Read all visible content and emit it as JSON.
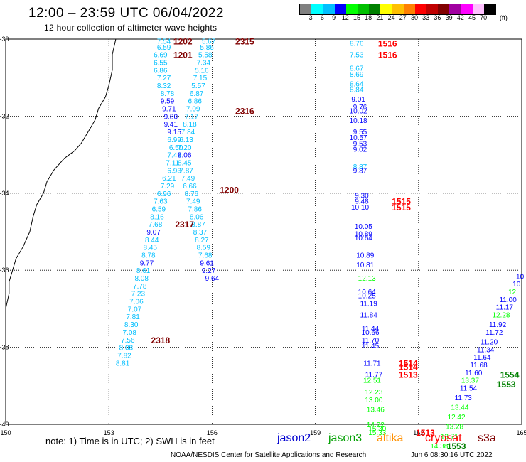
{
  "title": "12:00 – 23:59 UTC 06/04/2022",
  "subtitle": "12 hour collection of altimeter wave heights",
  "colorbar": {
    "unit": "(ft)",
    "labels": [
      "3",
      "6",
      "9",
      "12",
      "15",
      "18",
      "21",
      "24",
      "27",
      "30",
      "33",
      "36",
      "39",
      "42",
      "45",
      "70"
    ],
    "colors": [
      "#808080",
      "#00ffff",
      "#00bfff",
      "#0000ff",
      "#00ff00",
      "#00c000",
      "#008000",
      "#ffff00",
      "#ffc000",
      "#ff8000",
      "#ff0000",
      "#c00000",
      "#800000",
      "#a000a0",
      "#ff00ff",
      "#ffc0ff",
      "#000000"
    ]
  },
  "axes": {
    "lon_labels": [
      "150",
      "153",
      "156",
      "159",
      "162",
      "165"
    ],
    "lat_labels": [
      "-30",
      "-32",
      "-34",
      "-36",
      "-38",
      "-40"
    ]
  },
  "note": "note:  1) Time is in UTC;  2) SWH is in feet",
  "legend": [
    {
      "name": "jason2",
      "color": "#0000d0"
    },
    {
      "name": "jason3",
      "color": "#00a000"
    },
    {
      "name": "altika",
      "color": "#ff9000"
    },
    {
      "name": "cryosat",
      "color": "#ff0000"
    },
    {
      "name": "s3a",
      "color": "#800000"
    }
  ],
  "credit": "NOAA/NESDIS Center for Satellite Applications and Research",
  "timestamp": "Jun  6 08:30:16 UTC 2022",
  "map_data": {
    "lon_range": [
      150,
      165
    ],
    "lat_range": [
      -40,
      -30
    ],
    "coastline": [
      [
        153.2,
        -30.0
      ],
      [
        153.1,
        -30.4
      ],
      [
        153.1,
        -30.8
      ],
      [
        153.0,
        -31.2
      ],
      [
        152.9,
        -31.5
      ],
      [
        152.7,
        -31.8
      ],
      [
        152.6,
        -32.1
      ],
      [
        152.4,
        -32.4
      ],
      [
        152.2,
        -32.7
      ],
      [
        152.0,
        -32.9
      ],
      [
        151.7,
        -33.1
      ],
      [
        151.4,
        -33.4
      ],
      [
        151.2,
        -33.7
      ],
      [
        151.1,
        -34.0
      ],
      [
        150.9,
        -34.3
      ],
      [
        150.8,
        -34.6
      ],
      [
        150.7,
        -35.0
      ],
      [
        150.5,
        -35.4
      ],
      [
        150.3,
        -35.7
      ],
      [
        150.2,
        -36.0
      ],
      [
        150.1,
        -36.3
      ],
      [
        150.1,
        -36.6
      ],
      [
        150.0,
        -37.0
      ],
      [
        150.0,
        -37.3
      ]
    ],
    "labels": [
      {
        "t": "7.54",
        "lon": 154.6,
        "lat": -30.05,
        "c": "#00bfff"
      },
      {
        "t": "6.59",
        "lon": 154.6,
        "lat": -30.2,
        "c": "#00bfff"
      },
      {
        "t": "6.69",
        "lon": 154.5,
        "lat": -30.4,
        "c": "#00bfff"
      },
      {
        "t": "6.55",
        "lon": 154.5,
        "lat": -30.6,
        "c": "#00bfff"
      },
      {
        "t": "6.86",
        "lon": 154.5,
        "lat": -30.8,
        "c": "#00bfff"
      },
      {
        "t": "7.27",
        "lon": 154.6,
        "lat": -31.0,
        "c": "#00bfff"
      },
      {
        "t": "8.32",
        "lon": 154.6,
        "lat": -31.2,
        "c": "#00bfff"
      },
      {
        "t": "8.78",
        "lon": 154.7,
        "lat": -31.4,
        "c": "#00bfff"
      },
      {
        "t": "9.59",
        "lon": 154.7,
        "lat": -31.6,
        "c": "#0000ff"
      },
      {
        "t": "9.71",
        "lon": 154.75,
        "lat": -31.8,
        "c": "#0000ff"
      },
      {
        "t": "9.80",
        "lon": 154.8,
        "lat": -32.0,
        "c": "#0000ff"
      },
      {
        "t": "9.41",
        "lon": 154.8,
        "lat": -32.2,
        "c": "#0000ff"
      },
      {
        "t": "9.15",
        "lon": 154.9,
        "lat": -32.4,
        "c": "#0000ff"
      },
      {
        "t": "6.99",
        "lon": 154.9,
        "lat": -32.6,
        "c": "#00bfff"
      },
      {
        "t": "6.50",
        "lon": 154.95,
        "lat": -32.8,
        "c": "#00bfff"
      },
      {
        "t": "7.49",
        "lon": 154.9,
        "lat": -33.0,
        "c": "#00bfff"
      },
      {
        "t": "7.11",
        "lon": 154.85,
        "lat": -33.2,
        "c": "#00bfff"
      },
      {
        "t": "6.93",
        "lon": 154.9,
        "lat": -33.4,
        "c": "#00bfff"
      },
      {
        "t": "6.21",
        "lon": 154.75,
        "lat": -33.6,
        "c": "#00bfff"
      },
      {
        "t": "7.29",
        "lon": 154.7,
        "lat": -33.8,
        "c": "#00bfff"
      },
      {
        "t": "6.96",
        "lon": 154.6,
        "lat": -34.0,
        "c": "#00bfff"
      },
      {
        "t": "7.63",
        "lon": 154.5,
        "lat": -34.2,
        "c": "#00bfff"
      },
      {
        "t": "6.59",
        "lon": 154.45,
        "lat": -34.4,
        "c": "#00bfff"
      },
      {
        "t": "8.16",
        "lon": 154.4,
        "lat": -34.6,
        "c": "#00bfff"
      },
      {
        "t": "7.68",
        "lon": 154.35,
        "lat": -34.8,
        "c": "#00bfff"
      },
      {
        "t": "9.07",
        "lon": 154.3,
        "lat": -35.0,
        "c": "#0000ff"
      },
      {
        "t": "8.44",
        "lon": 154.25,
        "lat": -35.2,
        "c": "#00bfff"
      },
      {
        "t": "8.45",
        "lon": 154.2,
        "lat": -35.4,
        "c": "#00bfff"
      },
      {
        "t": "8.78",
        "lon": 154.15,
        "lat": -35.6,
        "c": "#00bfff"
      },
      {
        "t": "9.77",
        "lon": 154.1,
        "lat": -35.8,
        "c": "#0000ff"
      },
      {
        "t": "8.61",
        "lon": 154.0,
        "lat": -36.0,
        "c": "#00bfff"
      },
      {
        "t": "8.08",
        "lon": 153.95,
        "lat": -36.2,
        "c": "#00bfff"
      },
      {
        "t": "7.78",
        "lon": 153.9,
        "lat": -36.4,
        "c": "#00bfff"
      },
      {
        "t": "7.23",
        "lon": 153.85,
        "lat": -36.6,
        "c": "#00bfff"
      },
      {
        "t": "7.06",
        "lon": 153.8,
        "lat": -36.8,
        "c": "#00bfff"
      },
      {
        "t": "7.07",
        "lon": 153.75,
        "lat": -37.0,
        "c": "#00bfff"
      },
      {
        "t": "7.81",
        "lon": 153.7,
        "lat": -37.2,
        "c": "#00bfff"
      },
      {
        "t": "8.30",
        "lon": 153.65,
        "lat": -37.4,
        "c": "#00bfff"
      },
      {
        "t": "7.08",
        "lon": 153.6,
        "lat": -37.6,
        "c": "#00bfff"
      },
      {
        "t": "7.56",
        "lon": 153.55,
        "lat": -37.8,
        "c": "#00bfff"
      },
      {
        "t": "8.08",
        "lon": 153.5,
        "lat": -38.0,
        "c": "#00bfff"
      },
      {
        "t": "7.82",
        "lon": 153.45,
        "lat": -38.2,
        "c": "#00bfff"
      },
      {
        "t": "8.81",
        "lon": 153.4,
        "lat": -38.4,
        "c": "#00bfff"
      },
      {
        "t": "5.67",
        "lon": 155.9,
        "lat": -30.05,
        "c": "#00bfff"
      },
      {
        "t": "5.86",
        "lon": 155.85,
        "lat": -30.2,
        "c": "#00bfff"
      },
      {
        "t": "5.58",
        "lon": 155.8,
        "lat": -30.4,
        "c": "#00bfff"
      },
      {
        "t": "7.34",
        "lon": 155.75,
        "lat": -30.6,
        "c": "#00bfff"
      },
      {
        "t": "5.16",
        "lon": 155.7,
        "lat": -30.8,
        "c": "#00bfff"
      },
      {
        "t": "7.15",
        "lon": 155.65,
        "lat": -31.0,
        "c": "#00bfff"
      },
      {
        "t": "5.57",
        "lon": 155.6,
        "lat": -31.2,
        "c": "#00bfff"
      },
      {
        "t": "6.87",
        "lon": 155.55,
        "lat": -31.4,
        "c": "#00bfff"
      },
      {
        "t": "6.86",
        "lon": 155.5,
        "lat": -31.6,
        "c": "#00bfff"
      },
      {
        "t": "7.09",
        "lon": 155.45,
        "lat": -31.8,
        "c": "#00bfff"
      },
      {
        "t": "7.17",
        "lon": 155.4,
        "lat": -32.0,
        "c": "#00bfff"
      },
      {
        "t": "8.18",
        "lon": 155.35,
        "lat": -32.2,
        "c": "#00bfff"
      },
      {
        "t": "7.84",
        "lon": 155.3,
        "lat": -32.4,
        "c": "#00bfff"
      },
      {
        "t": "6.13",
        "lon": 155.25,
        "lat": -32.6,
        "c": "#00bfff"
      },
      {
        "t": "7.20",
        "lon": 155.2,
        "lat": -32.8,
        "c": "#00bfff"
      },
      {
        "t": "8.06",
        "lon": 155.2,
        "lat": -33.0,
        "c": "#0000ff"
      },
      {
        "t": "8.45",
        "lon": 155.2,
        "lat": -33.2,
        "c": "#00bfff"
      },
      {
        "t": "7.87",
        "lon": 155.25,
        "lat": -33.4,
        "c": "#00bfff"
      },
      {
        "t": "7.49",
        "lon": 155.3,
        "lat": -33.6,
        "c": "#00bfff"
      },
      {
        "t": "6.66",
        "lon": 155.35,
        "lat": -33.8,
        "c": "#00bfff"
      },
      {
        "t": "8.76",
        "lon": 155.4,
        "lat": -34.0,
        "c": "#00bfff"
      },
      {
        "t": "7.49",
        "lon": 155.45,
        "lat": -34.2,
        "c": "#00bfff"
      },
      {
        "t": "7.86",
        "lon": 155.5,
        "lat": -34.4,
        "c": "#00bfff"
      },
      {
        "t": "8.06",
        "lon": 155.55,
        "lat": -34.6,
        "c": "#00bfff"
      },
      {
        "t": "8.87",
        "lon": 155.6,
        "lat": -34.8,
        "c": "#00bfff"
      },
      {
        "t": "8.37",
        "lon": 155.65,
        "lat": -35.0,
        "c": "#00bfff"
      },
      {
        "t": "8.27",
        "lon": 155.7,
        "lat": -35.2,
        "c": "#00bfff"
      },
      {
        "t": "8.59",
        "lon": 155.75,
        "lat": -35.4,
        "c": "#00bfff"
      },
      {
        "t": "7.68",
        "lon": 155.8,
        "lat": -35.6,
        "c": "#00bfff"
      },
      {
        "t": "9.61",
        "lon": 155.85,
        "lat": -35.8,
        "c": "#0000ff"
      },
      {
        "t": "9.27",
        "lon": 155.9,
        "lat": -36.0,
        "c": "#0000ff"
      },
      {
        "t": "9.64",
        "lon": 156.0,
        "lat": -36.2,
        "c": "#0000ff"
      },
      {
        "t": "8.76",
        "lon": 160.2,
        "lat": -30.1,
        "c": "#00bfff"
      },
      {
        "t": "7.53",
        "lon": 160.2,
        "lat": -30.4,
        "c": "#00bfff"
      },
      {
        "t": "8.67",
        "lon": 160.2,
        "lat": -30.75,
        "c": "#00bfff"
      },
      {
        "t": "8.69",
        "lon": 160.2,
        "lat": -30.9,
        "c": "#00bfff"
      },
      {
        "t": "8.64",
        "lon": 160.2,
        "lat": -31.15,
        "c": "#00bfff"
      },
      {
        "t": "8.84",
        "lon": 160.2,
        "lat": -31.3,
        "c": "#00bfff"
      },
      {
        "t": "9.01",
        "lon": 160.25,
        "lat": -31.55,
        "c": "#0000ff"
      },
      {
        "t": "9.76",
        "lon": 160.3,
        "lat": -31.75,
        "c": "#0000ff"
      },
      {
        "t": "10.02",
        "lon": 160.25,
        "lat": -31.85,
        "c": "#0000ff"
      },
      {
        "t": "10.18",
        "lon": 160.25,
        "lat": -32.1,
        "c": "#0000ff"
      },
      {
        "t": "9.55",
        "lon": 160.3,
        "lat": -32.4,
        "c": "#0000ff"
      },
      {
        "t": "10.57",
        "lon": 160.25,
        "lat": -32.55,
        "c": "#0000ff"
      },
      {
        "t": "9.53",
        "lon": 160.3,
        "lat": -32.7,
        "c": "#0000ff"
      },
      {
        "t": "9.02",
        "lon": 160.3,
        "lat": -32.85,
        "c": "#0000ff"
      },
      {
        "t": "8.87",
        "lon": 160.3,
        "lat": -33.3,
        "c": "#00bfff"
      },
      {
        "t": "9.87",
        "lon": 160.3,
        "lat": -33.4,
        "c": "#0000ff"
      },
      {
        "t": "9.30",
        "lon": 160.35,
        "lat": -34.05,
        "c": "#0000ff"
      },
      {
        "t": "9.48",
        "lon": 160.35,
        "lat": -34.2,
        "c": "#0000ff"
      },
      {
        "t": "10.10",
        "lon": 160.3,
        "lat": -34.35,
        "c": "#0000ff"
      },
      {
        "t": "10.05",
        "lon": 160.4,
        "lat": -34.85,
        "c": "#0000ff"
      },
      {
        "t": "10.89",
        "lon": 160.4,
        "lat": -35.05,
        "c": "#0000ff"
      },
      {
        "t": "10.64",
        "lon": 160.4,
        "lat": -35.15,
        "c": "#0000ff"
      },
      {
        "t": "10.89",
        "lon": 160.45,
        "lat": -35.6,
        "c": "#0000ff"
      },
      {
        "t": "10.81",
        "lon": 160.45,
        "lat": -35.85,
        "c": "#0000ff"
      },
      {
        "t": "12.13",
        "lon": 160.5,
        "lat": -36.2,
        "c": "#00ff00"
      },
      {
        "t": "10.64",
        "lon": 160.5,
        "lat": -36.55,
        "c": "#0000ff"
      },
      {
        "t": "10.25",
        "lon": 160.5,
        "lat": -36.65,
        "c": "#0000ff"
      },
      {
        "t": "11.19",
        "lon": 160.55,
        "lat": -36.85,
        "c": "#0000ff"
      },
      {
        "t": "11.84",
        "lon": 160.55,
        "lat": -37.15,
        "c": "#0000ff"
      },
      {
        "t": "11.44",
        "lon": 160.6,
        "lat": -37.5,
        "c": "#0000ff"
      },
      {
        "t": "10.66",
        "lon": 160.6,
        "lat": -37.6,
        "c": "#0000ff"
      },
      {
        "t": "11.70",
        "lon": 160.6,
        "lat": -37.8,
        "c": "#0000ff"
      },
      {
        "t": "11.45",
        "lon": 160.6,
        "lat": -37.95,
        "c": "#0000ff"
      },
      {
        "t": "11.71",
        "lon": 160.65,
        "lat": -38.4,
        "c": "#0000ff"
      },
      {
        "t": "11.77",
        "lon": 160.7,
        "lat": -38.7,
        "c": "#0000ff"
      },
      {
        "t": "12.51",
        "lon": 160.65,
        "lat": -38.85,
        "c": "#00ff00"
      },
      {
        "t": "12.23",
        "lon": 160.7,
        "lat": -39.15,
        "c": "#00ff00"
      },
      {
        "t": "13.00",
        "lon": 160.7,
        "lat": -39.35,
        "c": "#00ff00"
      },
      {
        "t": "13.46",
        "lon": 160.75,
        "lat": -39.6,
        "c": "#00ff00"
      },
      {
        "t": "14.22",
        "lon": 160.75,
        "lat": -40.0,
        "c": "#00ff00"
      },
      {
        "t": "15.30",
        "lon": 160.8,
        "lat": -40.1,
        "c": "#00ff00"
      },
      {
        "t": "15.33",
        "lon": 160.8,
        "lat": -40.2,
        "c": "#00ff00"
      },
      {
        "t": "14.38",
        "lon": 162.6,
        "lat": -40.55,
        "c": "#00ff00"
      },
      {
        "t": "13.71",
        "lon": 162.9,
        "lat": -40.3,
        "c": "#00ff00"
      },
      {
        "t": "13.28",
        "lon": 163.05,
        "lat": -40.05,
        "c": "#00ff00"
      },
      {
        "t": "12.42",
        "lon": 163.1,
        "lat": -39.8,
        "c": "#00ff00"
      },
      {
        "t": "13.44",
        "lon": 163.2,
        "lat": -39.55,
        "c": "#00ff00"
      },
      {
        "t": "11.73",
        "lon": 163.3,
        "lat": -39.3,
        "c": "#0000ff"
      },
      {
        "t": "11.54",
        "lon": 163.45,
        "lat": -39.05,
        "c": "#0000ff"
      },
      {
        "t": "13.37",
        "lon": 163.5,
        "lat": -38.85,
        "c": "#00ff00"
      },
      {
        "t": "11.60",
        "lon": 163.6,
        "lat": -38.65,
        "c": "#0000ff"
      },
      {
        "t": "11.68",
        "lon": 163.75,
        "lat": -38.45,
        "c": "#0000ff"
      },
      {
        "t": "11.64",
        "lon": 163.85,
        "lat": -38.25,
        "c": "#0000ff"
      },
      {
        "t": "11.34",
        "lon": 163.95,
        "lat": -38.05,
        "c": "#0000ff"
      },
      {
        "t": "11.20",
        "lon": 164.05,
        "lat": -37.85,
        "c": "#0000ff"
      },
      {
        "t": "11.72",
        "lon": 164.2,
        "lat": -37.6,
        "c": "#0000ff"
      },
      {
        "t": "11.92",
        "lon": 164.3,
        "lat": -37.4,
        "c": "#0000ff"
      },
      {
        "t": "12.28",
        "lon": 164.4,
        "lat": -37.15,
        "c": "#00ff00"
      },
      {
        "t": "11.17",
        "lon": 164.5,
        "lat": -36.95,
        "c": "#0000ff"
      },
      {
        "t": "11.00",
        "lon": 164.6,
        "lat": -36.75,
        "c": "#0000ff"
      },
      {
        "t": "12.",
        "lon": 164.75,
        "lat": -36.55,
        "c": "#00ff00"
      },
      {
        "t": "10",
        "lon": 164.85,
        "lat": -36.35,
        "c": "#0000ff"
      },
      {
        "t": "10",
        "lon": 164.95,
        "lat": -36.15,
        "c": "#0000ff"
      }
    ],
    "times": [
      {
        "t": "1202",
        "lon": 155.15,
        "lat": -30.05,
        "c": "#800000"
      },
      {
        "t": "2315",
        "lon": 156.95,
        "lat": -30.05,
        "c": "#800000"
      },
      {
        "t": "1201",
        "lon": 155.15,
        "lat": -30.4,
        "c": "#800000"
      },
      {
        "t": "2316",
        "lon": 156.95,
        "lat": -31.85,
        "c": "#800000"
      },
      {
        "t": "1200",
        "lon": 156.5,
        "lat": -33.9,
        "c": "#800000"
      },
      {
        "t": "2317",
        "lon": 155.2,
        "lat": -34.8,
        "c": "#800000"
      },
      {
        "t": "2318",
        "lon": 154.5,
        "lat": -37.8,
        "c": "#800000"
      },
      {
        "t": "1516",
        "lon": 161.1,
        "lat": -30.1,
        "c": "#ff0000"
      },
      {
        "t": "1516",
        "lon": 161.1,
        "lat": -30.4,
        "c": "#ff0000"
      },
      {
        "t": "1515",
        "lon": 161.5,
        "lat": -34.2,
        "c": "#ff0000"
      },
      {
        "t": "1515",
        "lon": 161.5,
        "lat": -34.35,
        "c": "#ff0000"
      },
      {
        "t": "1514",
        "lon": 161.7,
        "lat": -38.4,
        "c": "#ff0000"
      },
      {
        "t": "1514",
        "lon": 161.7,
        "lat": -38.5,
        "c": "#ff0000"
      },
      {
        "t": "1513",
        "lon": 161.7,
        "lat": -38.7,
        "c": "#ff0000"
      },
      {
        "t": "1513",
        "lon": 162.2,
        "lat": -40.2,
        "c": "#ff0000"
      },
      {
        "t": "1553",
        "lon": 163.1,
        "lat": -40.55,
        "c": "#008000"
      },
      {
        "t": "1554",
        "lon": 164.65,
        "lat": -38.7,
        "c": "#008000"
      },
      {
        "t": "1553",
        "lon": 164.55,
        "lat": -38.95,
        "c": "#008000"
      }
    ]
  }
}
